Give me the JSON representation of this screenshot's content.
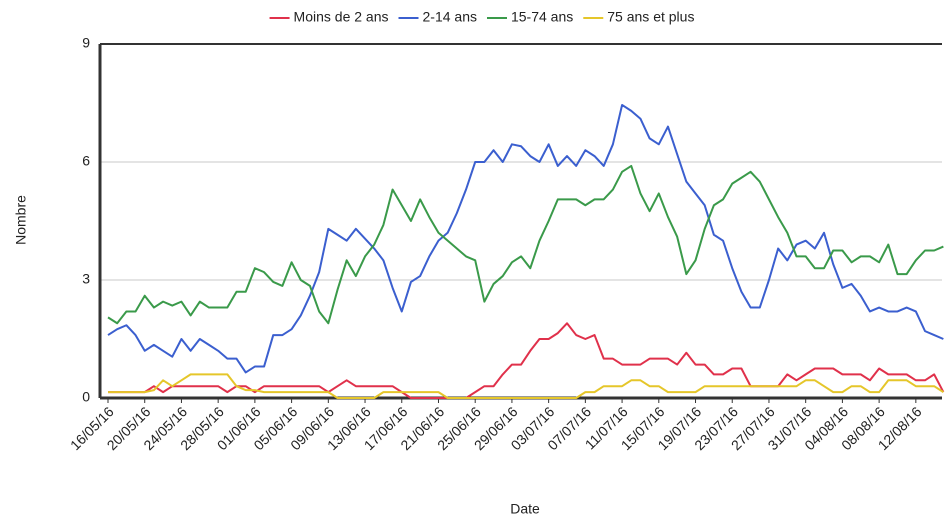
{
  "chart_data": {
    "type": "line",
    "categories": [
      "16/05/16",
      null,
      null,
      null,
      "20/05/16",
      null,
      null,
      null,
      "24/05/16",
      null,
      null,
      null,
      "28/05/16",
      null,
      null,
      null,
      "01/06/16",
      null,
      null,
      null,
      "05/06/16",
      null,
      null,
      null,
      "09/06/16",
      null,
      null,
      null,
      "13/06/16",
      null,
      null,
      null,
      "17/06/16",
      null,
      null,
      null,
      "21/06/16",
      null,
      null,
      null,
      "25/06/16",
      null,
      null,
      null,
      "29/06/16",
      null,
      null,
      null,
      "03/07/16",
      null,
      null,
      null,
      "07/07/16",
      null,
      null,
      null,
      "11/07/16",
      null,
      null,
      null,
      "15/07/16",
      null,
      null,
      null,
      "19/07/16",
      null,
      null,
      null,
      "23/07/16",
      null,
      null,
      null,
      "27/07/16",
      null,
      null,
      null,
      "31/07/16",
      null,
      null,
      null,
      "04/08/16",
      null,
      null,
      null,
      "08/08/16",
      null,
      null,
      null,
      "12/08/16",
      null,
      null,
      null
    ],
    "series": [
      {
        "name": "Moins de 2 ans",
        "color": "#e0314b",
        "values": [
          0.15,
          0.15,
          0.15,
          0.15,
          0.15,
          0.3,
          0.15,
          0.3,
          0.3,
          0.3,
          0.3,
          0.3,
          0.3,
          0.15,
          0.3,
          0.3,
          0.15,
          0.3,
          0.3,
          0.3,
          0.3,
          0.3,
          0.3,
          0.3,
          0.15,
          0.3,
          0.45,
          0.3,
          0.3,
          0.3,
          0.3,
          0.3,
          0.15,
          0,
          0,
          0,
          0,
          0,
          0,
          0,
          0.15,
          0.3,
          0.3,
          0.6,
          0.85,
          0.85,
          1.2,
          1.5,
          1.5,
          1.65,
          1.9,
          1.6,
          1.5,
          1.6,
          1.0,
          1.0,
          0.85,
          0.85,
          0.85,
          1.0,
          1.0,
          1.0,
          0.85,
          1.15,
          0.85,
          0.85,
          0.6,
          0.6,
          0.75,
          0.75,
          0.3,
          0.3,
          0.3,
          0.3,
          0.6,
          0.45,
          0.6,
          0.75,
          0.75,
          0.75,
          0.6,
          0.6,
          0.6,
          0.45,
          0.75,
          0.6,
          0.6,
          0.6,
          0.45,
          0.45,
          0.6,
          0.15
        ]
      },
      {
        "name": "2-14 ans",
        "color": "#3b5fcf",
        "values": [
          1.6,
          1.75,
          1.85,
          1.6,
          1.2,
          1.35,
          1.2,
          1.05,
          1.5,
          1.2,
          1.5,
          1.35,
          1.2,
          1.0,
          1.0,
          0.65,
          0.8,
          0.8,
          1.6,
          1.6,
          1.75,
          2.1,
          2.6,
          3.2,
          4.3,
          4.15,
          4.0,
          4.3,
          4.05,
          3.8,
          3.5,
          2.8,
          2.2,
          2.95,
          3.1,
          3.6,
          4.0,
          4.2,
          4.7,
          5.3,
          6.0,
          6.0,
          6.3,
          6.0,
          6.45,
          6.4,
          6.15,
          6.0,
          6.45,
          5.9,
          6.15,
          5.9,
          6.3,
          6.15,
          5.9,
          6.45,
          7.45,
          7.3,
          7.1,
          6.6,
          6.45,
          6.9,
          6.2,
          5.5,
          5.2,
          4.9,
          4.15,
          4.0,
          3.3,
          2.7,
          2.3,
          2.3,
          3.0,
          3.8,
          3.5,
          3.9,
          4.0,
          3.8,
          4.2,
          3.4,
          2.8,
          2.9,
          2.6,
          2.2,
          2.3,
          2.2,
          2.2,
          2.3,
          2.2,
          1.7,
          1.6,
          1.5
        ]
      },
      {
        "name": "15-74 ans",
        "color": "#3a9a4a",
        "values": [
          2.05,
          1.9,
          2.2,
          2.2,
          2.6,
          2.3,
          2.45,
          2.35,
          2.45,
          2.1,
          2.45,
          2.3,
          2.3,
          2.3,
          2.7,
          2.7,
          3.3,
          3.2,
          2.95,
          2.85,
          3.45,
          3.0,
          2.85,
          2.2,
          1.9,
          2.75,
          3.5,
          3.1,
          3.6,
          3.9,
          4.4,
          5.3,
          4.9,
          4.5,
          5.05,
          4.6,
          4.2,
          4.0,
          3.8,
          3.6,
          3.5,
          2.45,
          2.9,
          3.1,
          3.45,
          3.6,
          3.3,
          4.0,
          4.5,
          5.05,
          5.05,
          5.05,
          4.9,
          5.05,
          5.05,
          5.3,
          5.75,
          5.9,
          5.2,
          4.75,
          5.2,
          4.6,
          4.1,
          3.15,
          3.5,
          4.3,
          4.9,
          5.05,
          5.45,
          5.6,
          5.75,
          5.5,
          5.05,
          4.6,
          4.2,
          3.6,
          3.6,
          3.3,
          3.3,
          3.75,
          3.75,
          3.45,
          3.6,
          3.6,
          3.45,
          3.9,
          3.15,
          3.15,
          3.5,
          3.75,
          3.75,
          3.85
        ]
      },
      {
        "name": "75 ans et plus",
        "color": "#e5c62a",
        "values": [
          0.15,
          0.15,
          0.15,
          0.15,
          0.15,
          0.2,
          0.45,
          0.3,
          0.45,
          0.6,
          0.6,
          0.6,
          0.6,
          0.6,
          0.3,
          0.2,
          0.2,
          0.15,
          0.15,
          0.15,
          0.15,
          0.15,
          0.15,
          0.15,
          0.15,
          0,
          0,
          0,
          0,
          0,
          0.15,
          0.15,
          0.15,
          0.15,
          0.15,
          0.15,
          0.15,
          0,
          0,
          0,
          0,
          0,
          0,
          0,
          0,
          0,
          0,
          0,
          0,
          0,
          0,
          0,
          0.15,
          0.15,
          0.3,
          0.3,
          0.3,
          0.45,
          0.45,
          0.3,
          0.3,
          0.15,
          0.15,
          0.15,
          0.15,
          0.3,
          0.3,
          0.3,
          0.3,
          0.3,
          0.3,
          0.3,
          0.3,
          0.3,
          0.3,
          0.3,
          0.45,
          0.45,
          0.3,
          0.15,
          0.15,
          0.3,
          0.3,
          0.15,
          0.15,
          0.45,
          0.45,
          0.45,
          0.3,
          0.3,
          0.3,
          0.15
        ]
      }
    ],
    "xlabel": "Date",
    "ylabel": "Nombre",
    "ylim": [
      0,
      9
    ],
    "yticks": [
      0,
      3,
      6,
      9
    ],
    "grid": true,
    "legend": "top"
  }
}
